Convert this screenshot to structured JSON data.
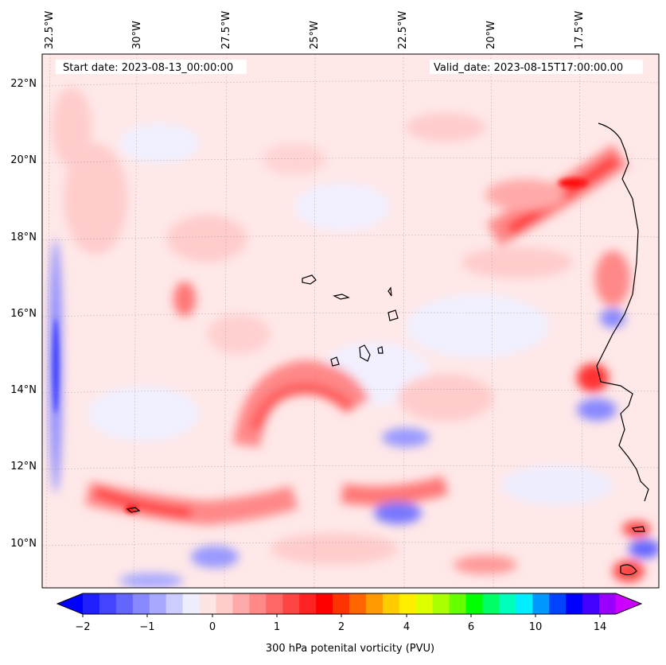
{
  "header": {
    "start_date": "Start date: 2023-08-13_00:00:00",
    "valid_date": "Valid_date: 2023-08-15T17:00:00.00"
  },
  "axes": {
    "longitude_labels": [
      "32.5°W",
      "30°W",
      "27.5°W",
      "25°W",
      "22.5°W",
      "20°W",
      "17.5°W"
    ],
    "latitude_labels": [
      "22°N",
      "20°N",
      "18°N",
      "16°N",
      "14°N",
      "12°N",
      "10°N"
    ]
  },
  "colorbar": {
    "title": "300 hPa potenital vorticity (PVU)",
    "tick_labels": [
      "−2",
      "−1",
      "0",
      "1",
      "2",
      "4",
      "6",
      "10",
      "14"
    ],
    "colors": [
      "#0000ff",
      "#2020ff",
      "#4444ff",
      "#6464ff",
      "#8888ff",
      "#a8a8ff",
      "#ccccff",
      "#eeeeff",
      "#ffe4e4",
      "#ffcccc",
      "#ffaaaa",
      "#ff8888",
      "#ff6666",
      "#ff4444",
      "#ff2222",
      "#ff0000",
      "#ff3300",
      "#ff6600",
      "#ff9900",
      "#ffcc00",
      "#ffee00",
      "#ddff00",
      "#aaff00",
      "#66ff00",
      "#00ff00",
      "#00ff66",
      "#00ffbb",
      "#00eeff",
      "#0099ff",
      "#0044ff",
      "#0000ff",
      "#4400ff",
      "#9900ff",
      "#cc00ff"
    ]
  },
  "colors": {
    "background_field": "#ffe8e8",
    "coastline": "#000000"
  }
}
